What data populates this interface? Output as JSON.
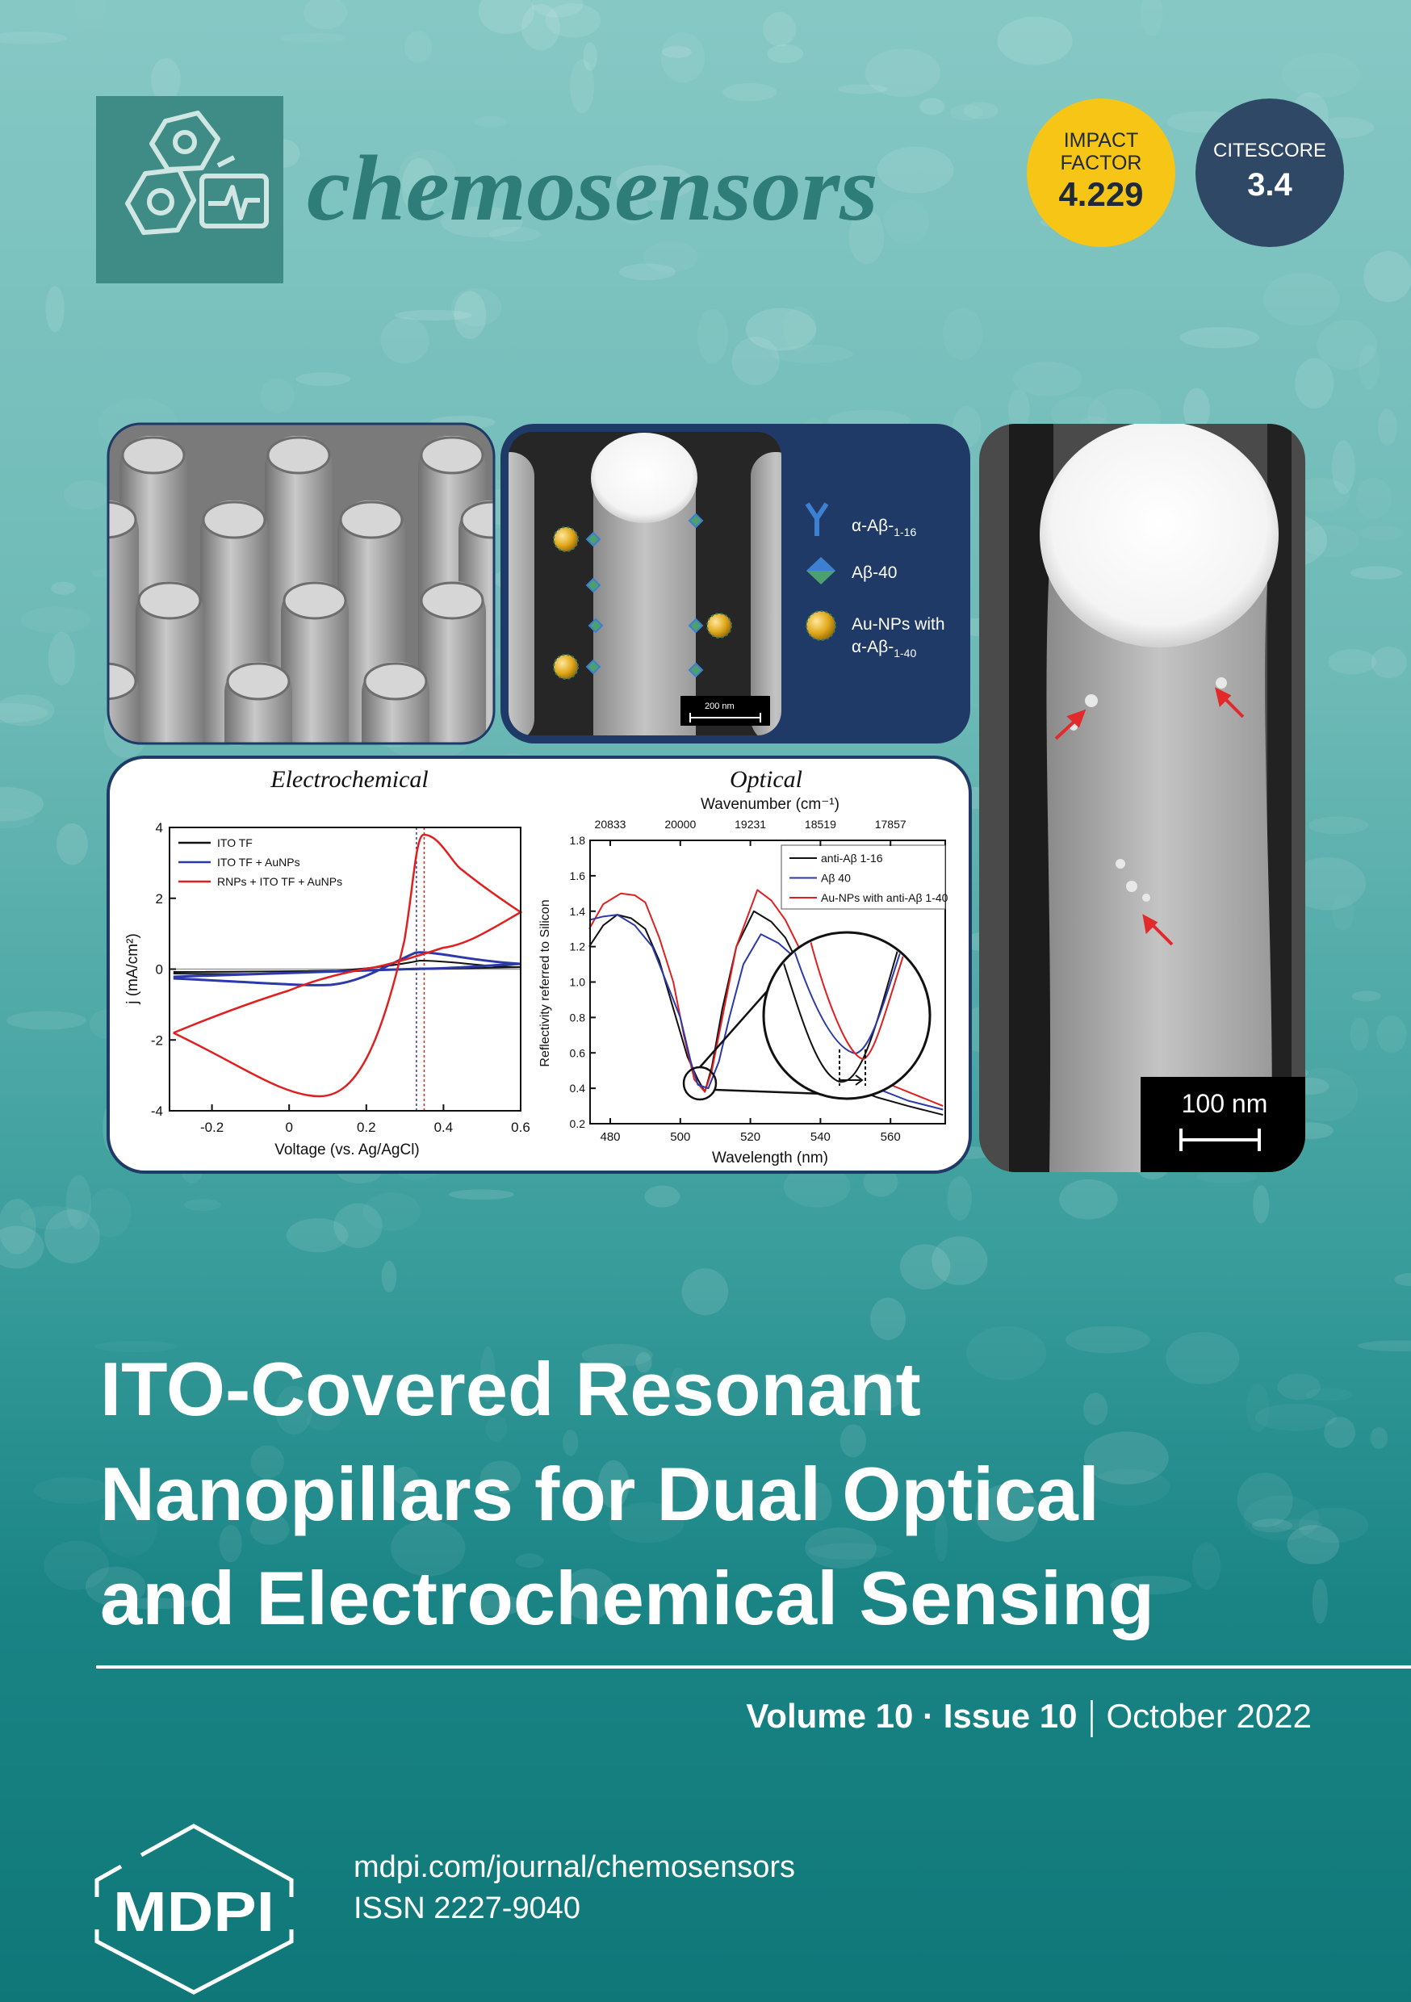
{
  "header": {
    "journal": "chemosensors"
  },
  "metrics": {
    "impact_factor": {
      "label": [
        "IMPACT",
        "FACTOR"
      ],
      "value": "4.229"
    },
    "citescore": {
      "label": "CITESCORE",
      "value": "3.4"
    }
  },
  "figure": {
    "schematic": {
      "antibody": {
        "text": "α-Aβ-",
        "sub": "1-16"
      },
      "peptide": "Aβ-40",
      "nanoparticle": {
        "line1": "Au-NPs with",
        "line2": "α-Aβ-",
        "line2_sub": "1-40"
      },
      "scale_bar": "200 nm"
    },
    "micrograph": {
      "scale_bar": "100 nm"
    },
    "electrochemical": {
      "title": "Electrochemical",
      "x_label": "Voltage (vs. Ag/AgCl)",
      "y_label": "j (mA/cm²)",
      "xticks": [
        "-0.2",
        "0",
        "0.2",
        "0.4",
        "0.6"
      ],
      "yticks": [
        "4",
        "2",
        "0",
        "-2",
        "-4"
      ],
      "legend": [
        "ITO TF",
        "ITO TF + AuNPs",
        "RNPs + ITO TF + AuNPs"
      ]
    },
    "optical": {
      "title": "Optical",
      "top_label": "Wavenumber (cm⁻¹)",
      "x_label": "Wavelength (nm)",
      "y_label": "Reflectivity referred to Silicon",
      "top_ticks": [
        "20833",
        "20000",
        "19231",
        "18519",
        "17857"
      ],
      "xticks": [
        "480",
        "500",
        "520",
        "540",
        "560"
      ],
      "yticks": [
        "1.8",
        "1.6",
        "1.4",
        "1.2",
        "1.0",
        "0.8",
        "0.6",
        "0.4",
        "0.2"
      ],
      "legend": [
        "anti-Aβ 1-16",
        "Aβ 40",
        "Au-NPs with anti-Aβ 1-40"
      ]
    }
  },
  "title": {
    "lines": [
      "ITO-Covered Resonant",
      "Nanopillars for Dual Optical",
      "and Electrochemical Sensing"
    ]
  },
  "issue": {
    "volume_issue": "Volume 10 · Issue 10",
    "date": "October 2022"
  },
  "footer": {
    "publisher": "MDPI",
    "url": "mdpi.com/journal/chemosensors",
    "issn": "ISSN 2227-9040"
  }
}
